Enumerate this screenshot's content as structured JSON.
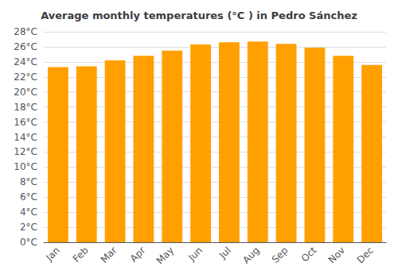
{
  "chart_data": {
    "type": "bar",
    "title": "Average monthly temperatures (°C ) in Pedro Sánchez",
    "categories": [
      "Jan",
      "Feb",
      "Mar",
      "Apr",
      "May",
      "Jun",
      "Jul",
      "Aug",
      "Sep",
      "Oct",
      "Nov",
      "Dec"
    ],
    "values": [
      23.3,
      23.4,
      24.2,
      24.8,
      25.5,
      26.3,
      26.6,
      26.7,
      26.4,
      25.9,
      24.8,
      23.6
    ],
    "color": "#FFA000",
    "ylim": [
      0,
      28
    ],
    "yticks": [
      {
        "value": 0,
        "label": "0°C"
      },
      {
        "value": 2,
        "label": "2°C"
      },
      {
        "value": 4,
        "label": "4°C"
      },
      {
        "value": 6,
        "label": "6°C"
      },
      {
        "value": 8,
        "label": "8°C"
      },
      {
        "value": 10,
        "label": "10°C"
      },
      {
        "value": 12,
        "label": "12°C"
      },
      {
        "value": 14,
        "label": "14°C"
      },
      {
        "value": 16,
        "label": "16°C"
      },
      {
        "value": 18,
        "label": "18°C"
      },
      {
        "value": 20,
        "label": "20°C"
      },
      {
        "value": 22,
        "label": "22°C"
      },
      {
        "value": 24,
        "label": "24°C"
      },
      {
        "value": 26,
        "label": "26°C"
      },
      {
        "value": 28,
        "label": "28°C"
      }
    ],
    "grid": true
  }
}
